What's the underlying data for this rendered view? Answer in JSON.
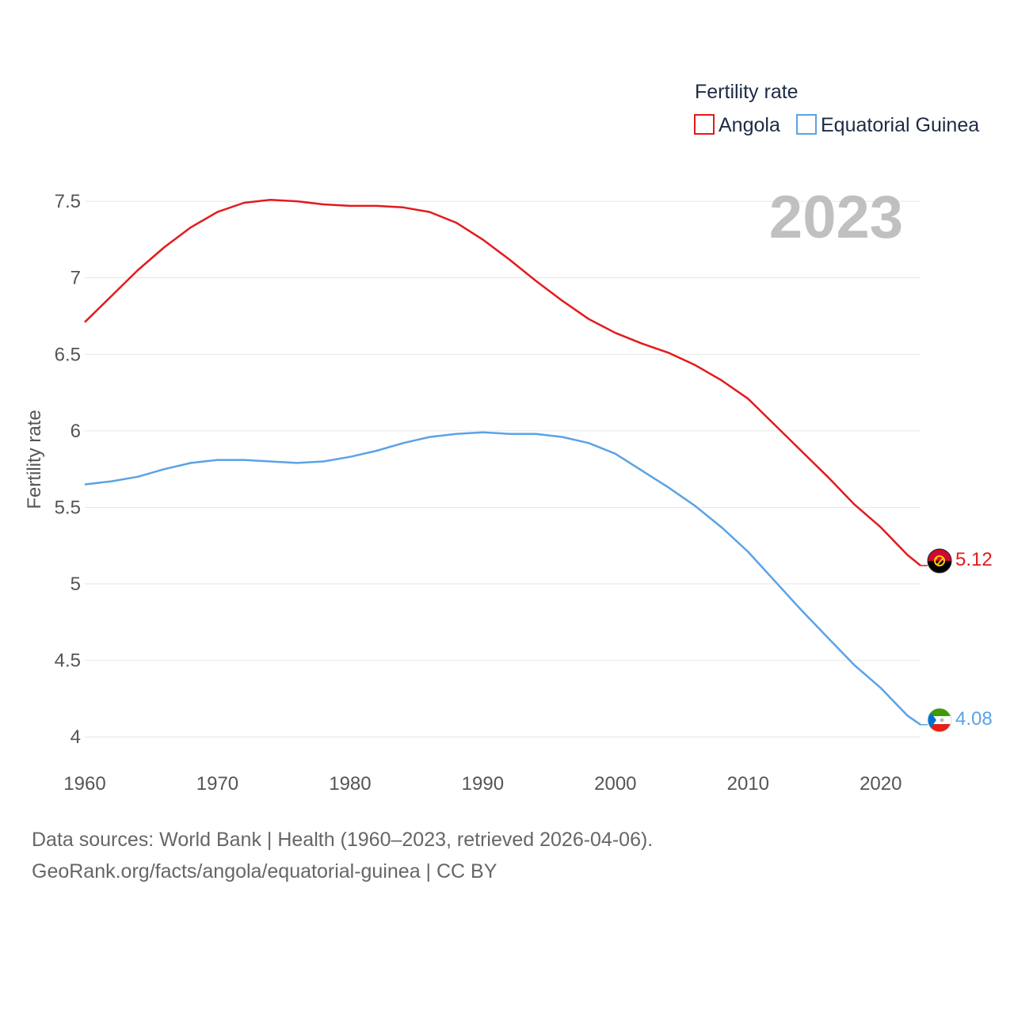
{
  "chart_data": {
    "type": "line",
    "legend_title": "Fertility rate",
    "ylabel": "Fertility rate",
    "year_label": "2023",
    "ylim": [
      3.82,
      7.78
    ],
    "xlim": [
      1960,
      2023
    ],
    "x_ticks": [
      1960,
      1970,
      1980,
      1990,
      2000,
      2010,
      2020
    ],
    "y_ticks": [
      4,
      4.5,
      5,
      5.5,
      6,
      6.5,
      7,
      7.5
    ],
    "y_tick_labels": [
      "4",
      "4.5",
      "5",
      "5.5",
      "6",
      "6.5",
      "7",
      "7.5"
    ],
    "x": [
      1960,
      1962,
      1964,
      1966,
      1968,
      1970,
      1972,
      1974,
      1976,
      1978,
      1980,
      1982,
      1984,
      1986,
      1988,
      1990,
      1992,
      1994,
      1996,
      1998,
      2000,
      2002,
      2004,
      2006,
      2008,
      2010,
      2012,
      2014,
      2016,
      2018,
      2020,
      2022,
      2023
    ],
    "series": [
      {
        "name": "Angola",
        "color": "#e31a1c",
        "end_value_label": "5.12",
        "flag": "angola-flag-icon",
        "values": [
          6.71,
          6.88,
          7.05,
          7.2,
          7.33,
          7.43,
          7.49,
          7.51,
          7.5,
          7.48,
          7.47,
          7.47,
          7.46,
          7.43,
          7.36,
          7.25,
          7.12,
          6.98,
          6.85,
          6.73,
          6.64,
          6.57,
          6.51,
          6.43,
          6.33,
          6.21,
          6.04,
          5.87,
          5.7,
          5.52,
          5.37,
          5.19,
          5.12
        ]
      },
      {
        "name": "Equatorial Guinea",
        "color": "#5aa3e6",
        "end_value_label": "4.08",
        "flag": "equatorial-guinea-flag-icon",
        "values": [
          5.65,
          5.67,
          5.7,
          5.75,
          5.79,
          5.81,
          5.81,
          5.8,
          5.79,
          5.8,
          5.83,
          5.87,
          5.92,
          5.96,
          5.98,
          5.99,
          5.98,
          5.98,
          5.96,
          5.92,
          5.85,
          5.74,
          5.63,
          5.51,
          5.37,
          5.21,
          5.02,
          4.83,
          4.65,
          4.47,
          4.32,
          4.14,
          4.08
        ]
      }
    ]
  },
  "footer": {
    "source_line": "Data sources: World Bank | Health (1960–2023, retrieved 2026-04-06).",
    "url_line": "GeoRank.org/facts/angola/equatorial-guinea | CC BY"
  }
}
